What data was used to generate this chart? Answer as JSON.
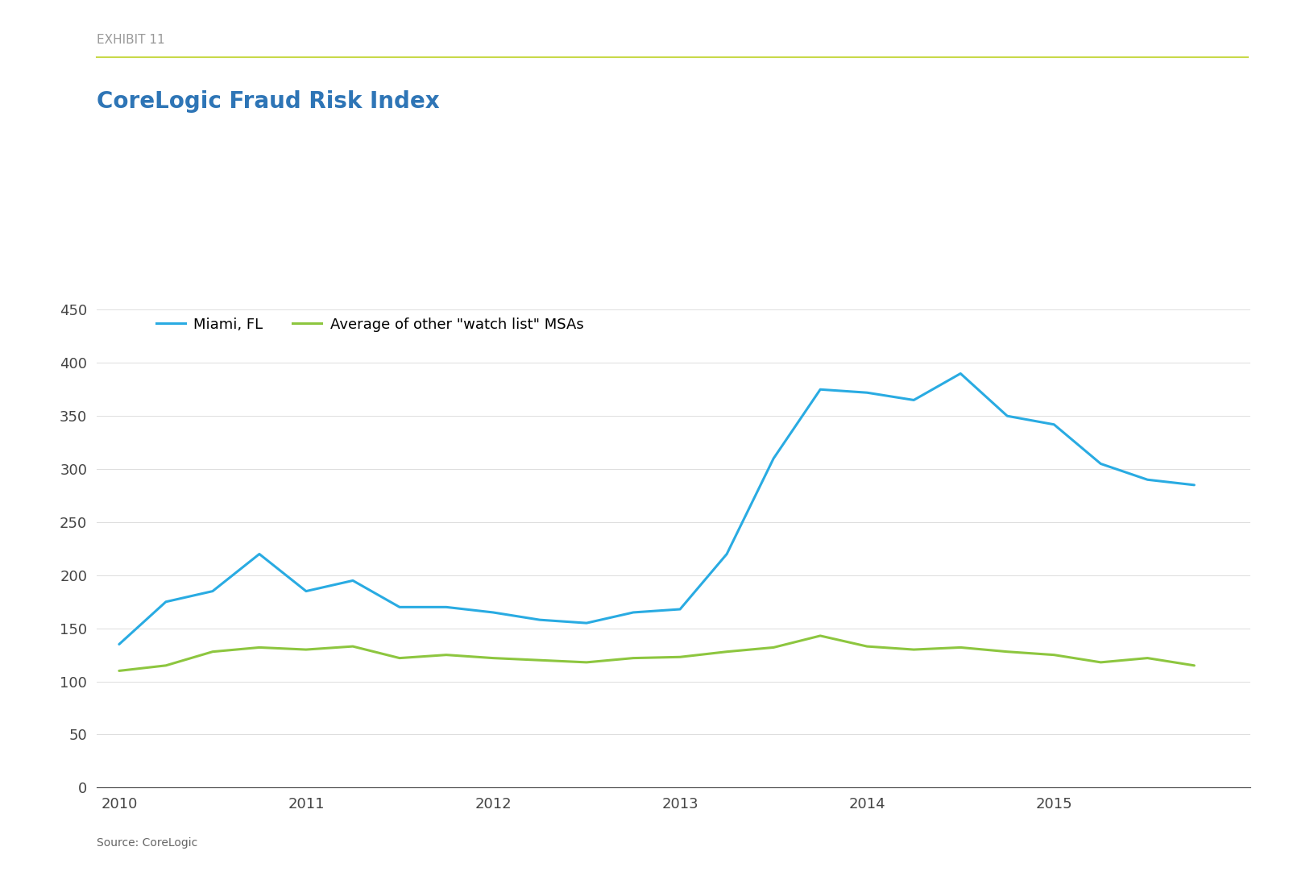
{
  "title": "CoreLogic Fraud Risk Index",
  "exhibit_label": "EXHIBIT 11",
  "source_label": "Source: CoreLogic",
  "miami_x": [
    2010.0,
    2010.25,
    2010.5,
    2010.75,
    2011.0,
    2011.25,
    2011.5,
    2011.75,
    2012.0,
    2012.25,
    2012.5,
    2012.75,
    2013.0,
    2013.25,
    2013.5,
    2013.75,
    2014.0,
    2014.25,
    2014.5,
    2014.75,
    2015.0,
    2015.25,
    2015.5,
    2015.75
  ],
  "miami_y": [
    135,
    175,
    185,
    220,
    185,
    195,
    170,
    170,
    165,
    158,
    155,
    165,
    168,
    220,
    310,
    375,
    372,
    365,
    390,
    350,
    342,
    305,
    290,
    285
  ],
  "avg_x": [
    2010.0,
    2010.25,
    2010.5,
    2010.75,
    2011.0,
    2011.25,
    2011.5,
    2011.75,
    2012.0,
    2012.25,
    2012.5,
    2012.75,
    2013.0,
    2013.25,
    2013.5,
    2013.75,
    2014.0,
    2014.25,
    2014.5,
    2014.75,
    2015.0,
    2015.25,
    2015.5,
    2015.75
  ],
  "avg_y": [
    110,
    115,
    128,
    132,
    130,
    133,
    122,
    125,
    122,
    120,
    118,
    122,
    123,
    128,
    132,
    143,
    133,
    130,
    132,
    128,
    125,
    118,
    122,
    115
  ],
  "miami_color": "#29ABE2",
  "avg_color": "#8DC63F",
  "title_color": "#2E75B6",
  "exhibit_color": "#999999",
  "separator_color": "#C8D94A",
  "bg_color": "#FFFFFF",
  "ylim": [
    0,
    460
  ],
  "yticks": [
    0,
    50,
    100,
    150,
    200,
    250,
    300,
    350,
    400,
    450
  ],
  "xlim": [
    2009.88,
    2016.05
  ],
  "xtick_years": [
    2010,
    2011,
    2012,
    2013,
    2014,
    2015
  ],
  "legend_miami": "Miami, FL",
  "legend_avg": "Average of other \"watch list\" MSAs",
  "line_width": 2.2,
  "title_fontsize": 20,
  "exhibit_fontsize": 11,
  "tick_fontsize": 13,
  "legend_fontsize": 13,
  "source_fontsize": 10
}
